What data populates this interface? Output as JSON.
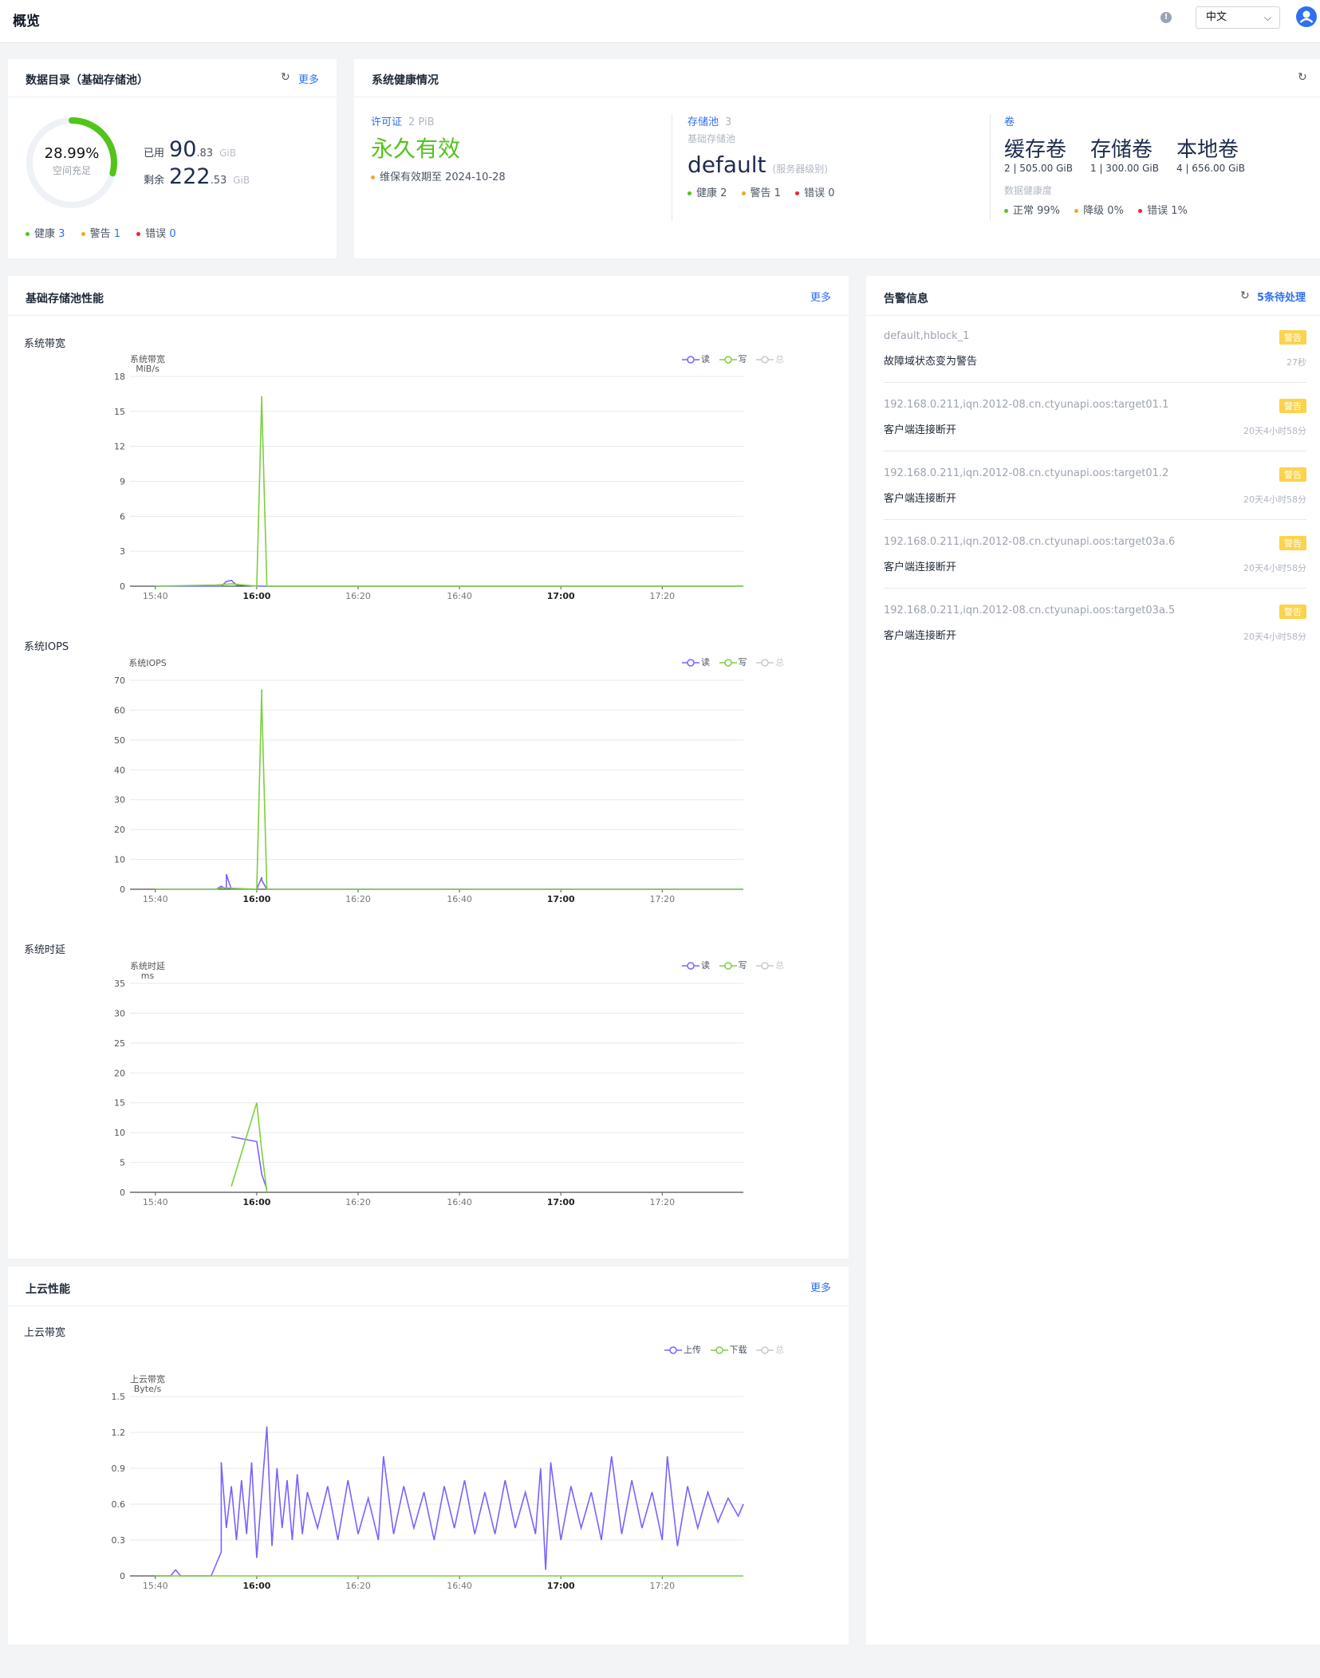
{
  "header": {
    "title": "概览",
    "info_icon": "info-circle-icon",
    "language": "中文",
    "user_icon": "user-avatar-icon"
  },
  "catalog": {
    "title": "数据目录（基础存储池）",
    "more": "更多",
    "fill_percent": "28.99%",
    "fill_fraction": 0.2899,
    "fill_label": "空间充足",
    "used_label": "已用",
    "used_int": "90",
    "used_dec": ".83",
    "used_unit": "GiB",
    "free_label": "剩余",
    "free_int": "222",
    "free_dec": ".53",
    "free_unit": "GiB",
    "healthy_label": "健康",
    "healthy_count": "3",
    "warn_label": "警告",
    "warn_count": "1",
    "error_label": "错误",
    "error_count": "0"
  },
  "health": {
    "title": "系统健康情况",
    "license_label": "许可证",
    "license_sub": "2 PiB",
    "license_value": "永久有效",
    "license_note": "维保有效期至 2024-10-28",
    "pool_label": "存储池",
    "pool_count": "3",
    "pool_sub": "基础存储池",
    "pool_name": "default",
    "pool_level": "(服务器级别)",
    "pool_healthy": "健康 2",
    "pool_warn": "警告 1",
    "pool_error": "错误 0",
    "volume_label": "卷",
    "volumes": [
      {
        "name": "缓存卷",
        "stat": "2 | 505.00 GiB"
      },
      {
        "name": "存储卷",
        "stat": "1 | 300.00 GiB"
      },
      {
        "name": "本地卷",
        "stat": "4 | 656.00 GiB"
      }
    ],
    "data_health_label": "数据健康度",
    "normal": "正常 99%",
    "degraded": "降级 0%",
    "error": "错误 1%"
  },
  "perf": {
    "title": "基础存储池性能",
    "more": "更多",
    "legend_read": "读",
    "legend_write": "写",
    "legend_total": "总"
  },
  "cloud": {
    "title": "上云性能",
    "more": "更多",
    "legend_up": "上传",
    "legend_down": "下载",
    "legend_total": "总"
  },
  "colors": {
    "accent": "#2f6ff0",
    "read": "#7b61ff",
    "write": "#7ad03f",
    "total": "#c9c9c9",
    "badge": "#fcd34d"
  },
  "chart_data": [
    {
      "type": "line",
      "title": "系统带宽",
      "ylabel": "系统带宽 MiB/s",
      "ylim": [
        0,
        18
      ],
      "yticks": [
        "0",
        "3",
        "6",
        "9",
        "12",
        "15",
        "18"
      ],
      "xticks": [
        "15:40",
        "16:00",
        "16:20",
        "16:40",
        "17:00",
        "17:20"
      ],
      "bold_xticks": [
        "16:00",
        "17:00"
      ],
      "series": [
        {
          "name": "读",
          "x": [
            "15:40",
            "15:53",
            "15:54",
            "15:55",
            "15:56",
            "16:01",
            "16:02",
            "17:36"
          ],
          "values": [
            0,
            0,
            0.4,
            0.5,
            0.1,
            0,
            0,
            0
          ]
        },
        {
          "name": "写",
          "x": [
            "15:40",
            "15:52",
            "15:55",
            "16:00",
            "16:01",
            "16:01",
            "16:02",
            "16:03",
            "17:36"
          ],
          "values": [
            0,
            0.1,
            0.2,
            0,
            16.3,
            15.8,
            0,
            0,
            0
          ]
        },
        {
          "name": "总",
          "x": [],
          "values": []
        }
      ]
    },
    {
      "type": "line",
      "title": "系统IOPS",
      "ylabel": "系统IOPS",
      "ylim": [
        0,
        70
      ],
      "yticks": [
        "0",
        "10",
        "20",
        "30",
        "40",
        "50",
        "60",
        "70"
      ],
      "xticks": [
        "15:40",
        "16:00",
        "16:20",
        "16:40",
        "17:00",
        "17:20"
      ],
      "bold_xticks": [
        "16:00",
        "17:00"
      ],
      "series": [
        {
          "name": "读",
          "x": [
            "15:40",
            "15:52",
            "15:53",
            "15:54",
            "15:54",
            "15:55",
            "16:00",
            "16:01",
            "16:01",
            "16:02",
            "17:36"
          ],
          "values": [
            0,
            0,
            1,
            0,
            5,
            0,
            0,
            4,
            3,
            0,
            0
          ]
        },
        {
          "name": "写",
          "x": [
            "15:40",
            "15:52",
            "15:53",
            "16:00",
            "16:01",
            "16:01",
            "16:02",
            "17:36"
          ],
          "values": [
            0,
            0,
            0.5,
            0,
            67,
            63,
            0,
            0
          ]
        },
        {
          "name": "总",
          "x": [],
          "values": []
        }
      ]
    },
    {
      "type": "line",
      "title": "系统时延",
      "ylabel": "系统时延 ms",
      "ylim": [
        0,
        35
      ],
      "yticks": [
        "0",
        "5",
        "10",
        "15",
        "20",
        "25",
        "30",
        "35"
      ],
      "xticks": [
        "15:40",
        "16:00",
        "16:20",
        "16:40",
        "17:00",
        "17:20"
      ],
      "bold_xticks": [
        "16:00",
        "17:00"
      ],
      "series": [
        {
          "name": "读",
          "x": [
            "15:55",
            "16:00",
            "16:01",
            "16:02"
          ],
          "values": [
            9.3,
            8.5,
            3,
            0.5
          ]
        },
        {
          "name": "写",
          "x": [
            "15:55",
            "16:00",
            "16:01",
            "16:02"
          ],
          "values": [
            1,
            15,
            7,
            0
          ]
        },
        {
          "name": "总",
          "x": [],
          "values": []
        }
      ]
    },
    {
      "type": "line",
      "title": "上云带宽",
      "ylabel": "上云带宽 Byte/s",
      "ylim": [
        0,
        1.5
      ],
      "yticks": [
        "0",
        "0.3",
        "0.6",
        "0.9",
        "1.2",
        "1.5"
      ],
      "xticks": [
        "15:40",
        "16:00",
        "16:20",
        "16:40",
        "17:00",
        "17:20"
      ],
      "bold_xticks": [
        "16:00",
        "17:00"
      ],
      "series": [
        {
          "name": "上传",
          "x": [
            "15:40",
            "15:43",
            "15:44",
            "15:45",
            "15:51",
            "15:53",
            "15:53",
            "15:54",
            "15:55",
            "15:56",
            "15:57",
            "15:58",
            "15:59",
            "16:00",
            "16:01",
            "16:02",
            "16:03",
            "16:04",
            "16:05",
            "16:06",
            "16:07",
            "16:08",
            "16:09",
            "16:10",
            "16:12",
            "16:14",
            "16:16",
            "16:18",
            "16:20",
            "16:22",
            "16:24",
            "16:25",
            "16:27",
            "16:29",
            "16:31",
            "16:33",
            "16:35",
            "16:37",
            "16:39",
            "16:41",
            "16:43",
            "16:45",
            "16:47",
            "16:49",
            "16:51",
            "16:53",
            "16:55",
            "16:56",
            "16:57",
            "16:58",
            "17:00",
            "17:02",
            "17:04",
            "17:06",
            "17:08",
            "17:10",
            "17:12",
            "17:14",
            "17:16",
            "17:18",
            "17:20",
            "17:21",
            "17:23",
            "17:25",
            "17:27",
            "17:29",
            "17:31",
            "17:33",
            "17:35",
            "17:36"
          ],
          "values": [
            0,
            0,
            0.05,
            0,
            0,
            0.2,
            0.95,
            0.4,
            0.75,
            0.3,
            0.8,
            0.35,
            0.95,
            0.15,
            0.7,
            1.25,
            0.25,
            0.9,
            0.4,
            0.8,
            0.3,
            0.85,
            0.35,
            0.7,
            0.4,
            0.75,
            0.3,
            0.8,
            0.35,
            0.65,
            0.3,
            1.0,
            0.35,
            0.75,
            0.4,
            0.7,
            0.3,
            0.75,
            0.4,
            0.8,
            0.35,
            0.7,
            0.35,
            0.8,
            0.4,
            0.7,
            0.35,
            0.9,
            0.05,
            0.95,
            0.3,
            0.75,
            0.4,
            0.7,
            0.3,
            1.0,
            0.35,
            0.8,
            0.4,
            0.7,
            0.3,
            1.0,
            0.25,
            0.75,
            0.4,
            0.7,
            0.45,
            0.65,
            0.5,
            0.6
          ]
        },
        {
          "name": "下载",
          "x": [
            "15:40",
            "17:36"
          ],
          "values": [
            0,
            0
          ]
        },
        {
          "name": "总",
          "x": [],
          "values": []
        }
      ]
    }
  ],
  "alerts": {
    "title": "告警信息",
    "pending": "5条待处理",
    "items": [
      {
        "source": "default,hblock_1",
        "message": "故障域状态变为警告",
        "badge": "警告",
        "time": "27秒"
      },
      {
        "source": "192.168.0.211,iqn.2012-08.cn.ctyunapi.oos:target01.1",
        "message": "客户端连接断开",
        "badge": "警告",
        "time": "20天4小时58分"
      },
      {
        "source": "192.168.0.211,iqn.2012-08.cn.ctyunapi.oos:target01.2",
        "message": "客户端连接断开",
        "badge": "警告",
        "time": "20天4小时58分"
      },
      {
        "source": "192.168.0.211,iqn.2012-08.cn.ctyunapi.oos:target03a.6",
        "message": "客户端连接断开",
        "badge": "警告",
        "time": "20天4小时58分"
      },
      {
        "source": "192.168.0.211,iqn.2012-08.cn.ctyunapi.oos:target03a.5",
        "message": "客户端连接断开",
        "badge": "警告",
        "time": "20天4小时58分"
      }
    ]
  }
}
